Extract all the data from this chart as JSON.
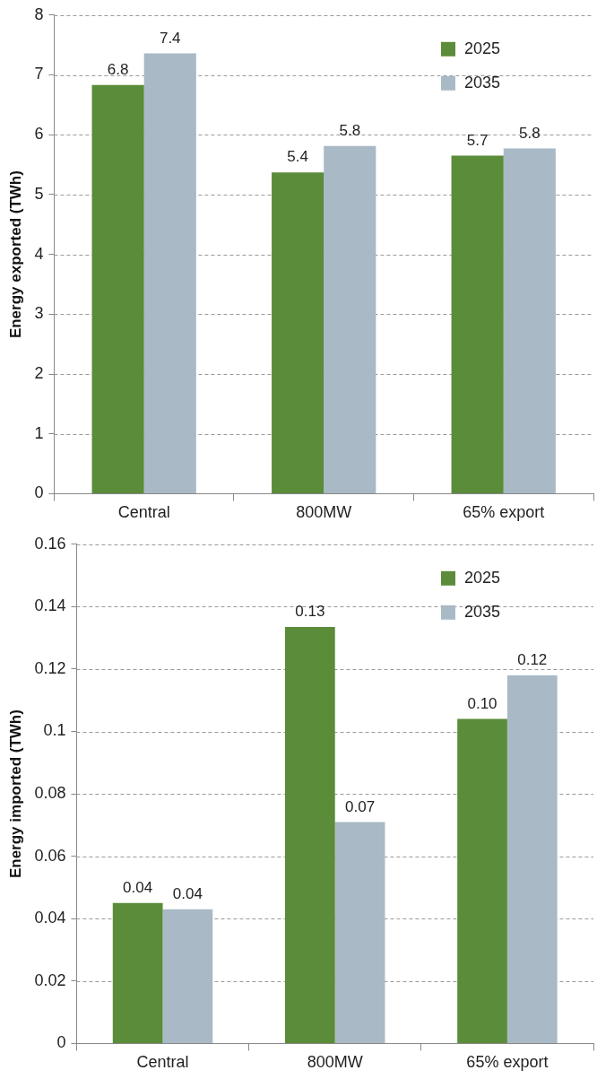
{
  "chart_data": [
    {
      "type": "bar",
      "ylabel": "Energy exported (TWh)",
      "categories": [
        "Central",
        "800MW",
        "65% export"
      ],
      "series": [
        {
          "name": "2025",
          "color": "#5b8c3a",
          "values": [
            6.83,
            5.37,
            5.65
          ],
          "value_labels": [
            "6.8",
            "5.4",
            "5.7"
          ]
        },
        {
          "name": "2035",
          "color": "#a9b9c6",
          "values": [
            7.36,
            5.81,
            5.77
          ],
          "value_labels": [
            "7.4",
            "5.8",
            "5.8"
          ]
        }
      ],
      "ylim": [
        0,
        8
      ],
      "yticks": [
        0,
        1,
        2,
        3,
        4,
        5,
        6,
        7,
        8
      ],
      "grid": "y",
      "legend": "top right"
    },
    {
      "type": "bar",
      "ylabel": "Energy imported (TWh)",
      "categories": [
        "Central",
        "800MW",
        "65% export"
      ],
      "series": [
        {
          "name": "2025",
          "color": "#5b8c3a",
          "values": [
            0.045,
            0.1335,
            0.104
          ],
          "value_labels": [
            "0.04",
            "0.13",
            "0.10"
          ]
        },
        {
          "name": "2035",
          "color": "#a9b9c6",
          "values": [
            0.043,
            0.071,
            0.118
          ],
          "value_labels": [
            "0.04",
            "0.07",
            "0.12"
          ]
        }
      ],
      "ylim": [
        0,
        0.16
      ],
      "yticks": [
        0,
        0.02,
        0.04,
        0.06,
        0.08,
        0.1,
        0.12,
        0.14,
        0.16
      ],
      "grid": "y",
      "legend": "top right"
    }
  ]
}
